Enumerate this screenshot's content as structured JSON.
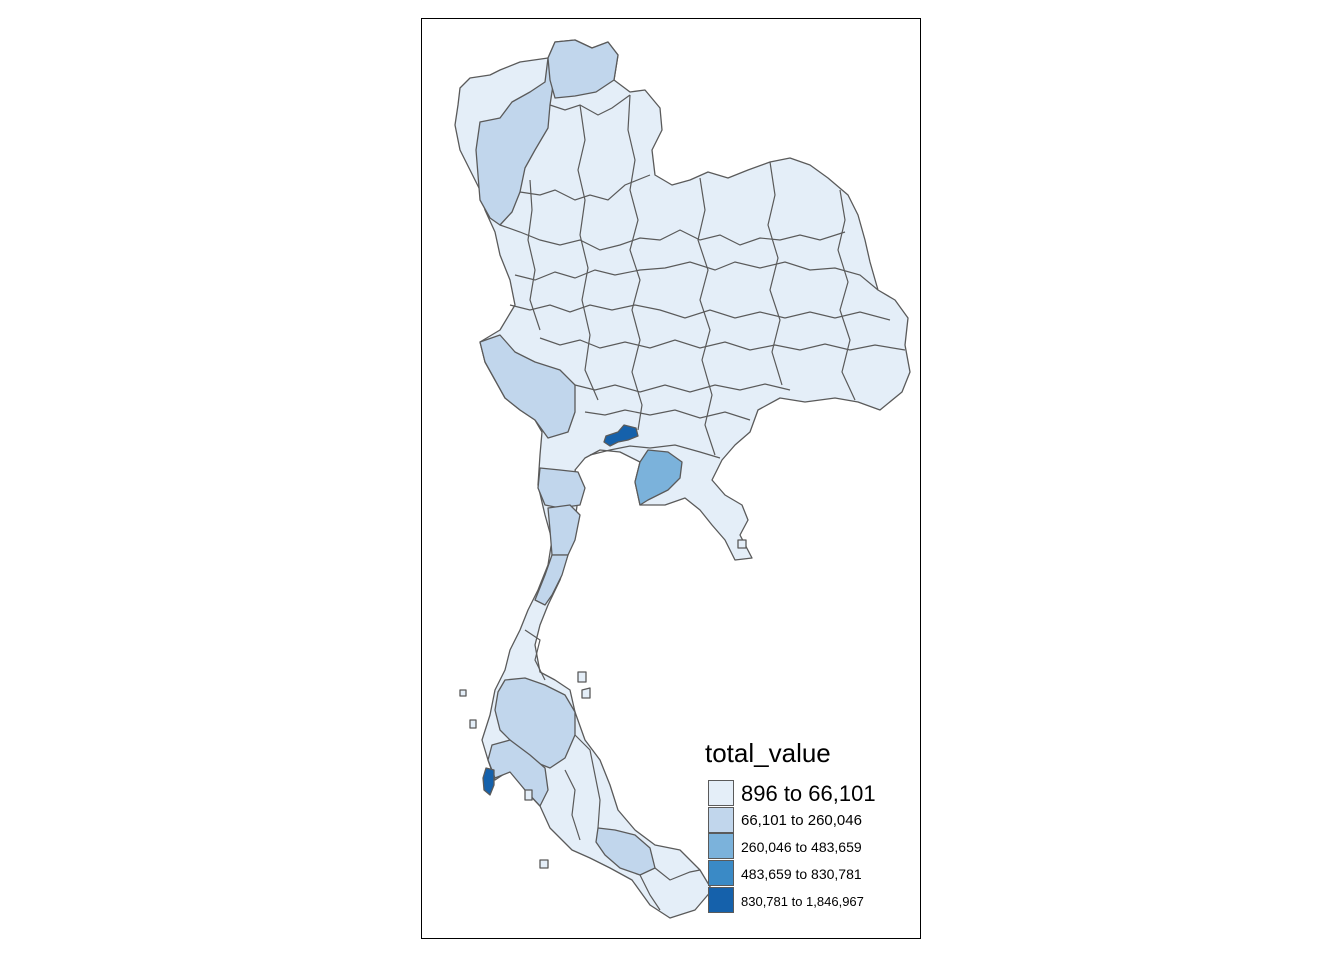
{
  "legend": {
    "title": "total_value",
    "items": [
      {
        "label": "896 to 66,101",
        "color": "#e4eef8"
      },
      {
        "label": "66,101 to 260,046",
        "color": "#c1d6ec"
      },
      {
        "label": "260,046 to 483,659",
        "color": "#7bb2db"
      },
      {
        "label": "483,659 to 830,781",
        "color": "#3a8ac6"
      },
      {
        "label": "830,781 to 1,846,967",
        "color": "#1561ab"
      }
    ]
  },
  "map": {
    "border_color": "#5a5a5a"
  }
}
